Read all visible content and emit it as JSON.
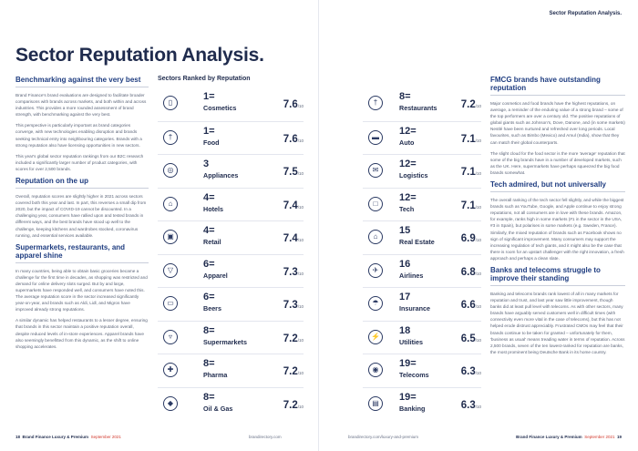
{
  "header": {
    "running_title": "Sector Reputation Analysis."
  },
  "title": "Sector Reputation Analysis.",
  "left_column": [
    {
      "heading": "Benchmarking against the very best",
      "paragraphs": [
        "Brand Finance's brand evaluations are designed to facilitate broader comparisons with brands across markets, and both within and across industries. This provides a more rounded assessment of brand strength, with benchmarking against the very best.",
        "This perspective is particularly important as brand categories converge, with new technologies enabling disruption and brands seeking technical entry into neighbouring categories. Brands with a strong reputation also have licensing opportunities in new sectors.",
        "This year's global sector reputation rankings from our B2C research included a significantly larger number of product categories, with scores for over 2,500 brands."
      ]
    },
    {
      "heading": "Reputation on the up",
      "paragraphs": [
        "Overall, reputation scores are slightly higher in 2021 across sectors covered both this year and last. In part, this reverses a small dip from 2020, but the impact of COVID-19 cannot be discounted. In a challenging year, consumers have rallied upon and tested brands in different ways, and the best brands have stood up well to the challenge, keeping kitchens and wardrobes stocked, coronavirus running, and essential services available."
      ]
    },
    {
      "heading": "Supermarkets, restaurants, and apparel shine",
      "paragraphs": [
        "In many countries, being able to obtain basic groceries became a challenge for the first time in decades, as shopping was restricted and demand for online delivery slots surged. But by and large, supermarkets have responded well, and consumers have noted this. The average reputation score in the sector increased significantly year-on-year, and brands such as Aldi, Lidl, and Migros have improved already strong reputations.",
        "A similar dynamic has helped restaurants to a lesser degree, ensuring that brands in this sector maintain a positive reputation overall, despite reduced levels of in-store experiences. Apparel brands have also seemingly benefitted from this dynamic, as the shift to online shopping accelerates."
      ]
    }
  ],
  "ranking": {
    "title": "Sectors Ranked by Reputation",
    "unit": "/10",
    "left": [
      {
        "rank": "1=",
        "sector": "Cosmetics",
        "score": "7.6",
        "icon": "lipstick-icon",
        "glyph": "▯"
      },
      {
        "rank": "1=",
        "sector": "Food",
        "score": "7.6",
        "icon": "cutlery-icon",
        "glyph": "†"
      },
      {
        "rank": "3",
        "sector": "Appliances",
        "score": "7.5",
        "icon": "washing-machine-icon",
        "glyph": "◎"
      },
      {
        "rank": "4=",
        "sector": "Hotels",
        "score": "7.4",
        "icon": "hotel-bed-icon",
        "glyph": "⌂"
      },
      {
        "rank": "4=",
        "sector": "Retail",
        "score": "7.4",
        "icon": "shopping-bag-icon",
        "glyph": "▣"
      },
      {
        "rank": "6=",
        "sector": "Apparel",
        "score": "7.3",
        "icon": "shirt-icon",
        "glyph": "▽"
      },
      {
        "rank": "6=",
        "sector": "Beers",
        "score": "7.3",
        "icon": "beer-icon",
        "glyph": "▭"
      },
      {
        "rank": "8=",
        "sector": "Supermarkets",
        "score": "7.2",
        "icon": "cart-icon",
        "glyph": "▿"
      },
      {
        "rank": "8=",
        "sector": "Pharma",
        "score": "7.2",
        "icon": "pill-icon",
        "glyph": "✚"
      },
      {
        "rank": "8=",
        "sector": "Oil & Gas",
        "score": "7.2",
        "icon": "oil-drop-icon",
        "glyph": "◆"
      }
    ],
    "right": [
      {
        "rank": "8=",
        "sector": "Restaurants",
        "score": "7.2",
        "icon": "restaurant-icon",
        "glyph": "†"
      },
      {
        "rank": "12=",
        "sector": "Auto",
        "score": "7.1",
        "icon": "car-icon",
        "glyph": "▬"
      },
      {
        "rank": "12=",
        "sector": "Logistics",
        "score": "7.1",
        "icon": "envelope-icon",
        "glyph": "✉"
      },
      {
        "rank": "12=",
        "sector": "Tech",
        "score": "7.1",
        "icon": "laptop-icon",
        "glyph": "□"
      },
      {
        "rank": "15",
        "sector": "Real Estate",
        "score": "6.9",
        "icon": "house-icon",
        "glyph": "⌂"
      },
      {
        "rank": "16",
        "sector": "Airlines",
        "score": "6.8",
        "icon": "plane-icon",
        "glyph": "✈"
      },
      {
        "rank": "17",
        "sector": "Insurance",
        "score": "6.6",
        "icon": "umbrella-icon",
        "glyph": "☂"
      },
      {
        "rank": "18",
        "sector": "Utilities",
        "score": "6.5",
        "icon": "plug-icon",
        "glyph": "⚡"
      },
      {
        "rank": "19=",
        "sector": "Telecoms",
        "score": "6.3",
        "icon": "satellite-icon",
        "glyph": "◉"
      },
      {
        "rank": "19=",
        "sector": "Banking",
        "score": "6.3",
        "icon": "bank-icon",
        "glyph": "▤"
      }
    ]
  },
  "right_column": [
    {
      "heading": "FMCG brands have outstanding reputation",
      "paragraphs": [
        "Major cosmetics and food brands have the highest reputations, on average, a reminder of the enduring value of a strong brand – some of the top performers are over a century old. The positive reputations of global giants such as Johnson's, Dove, Danone, and (in some markets) Nestlé have been nurtured and refreshed over long periods. Local favourites, such as Bimbo (Mexico) and Amul (India), show that they can match their global counterparts.",
        "The slight cloud for the food sector is the more 'average' reputation that some of the big brands have in a number of developed markets, such as the UK. Here, supermarkets have perhaps squeezed the big food brands somewhat."
      ]
    },
    {
      "heading": "Tech admired, but not universally",
      "paragraphs": [
        "The overall ranking of the tech sector fell slightly, and while the biggest brands such as YouTube, Google, and Apple continue to enjoy strong reputations, not all consumers are in love with these brands. Amazon, for example, ranks high in some markets (#1 in the sector in the USA, #3 in Spain), but polarises in some markets (e.g. Sweden, France). Similarly, the mixed reputation of brands such as Facebook shows no sign of significant improvement. Many consumers may support the increasing regulation of tech giants, and it might also be the case that there is room for an upstart challenger with the right innovation, a fresh approach and perhaps a clean slate."
      ]
    },
    {
      "heading": "Banks and telecoms struggle to improve their standing",
      "paragraphs": [
        "Banking and telecoms brands rank lowest of all in many markets for reputation and trust, and last year saw little improvement, though banks did at least pull level with telecoms. As with other sectors, many brands have arguably served customers well in difficult times (with connectivity even more vital in the case of telecoms), but this has not helped erode distrust appreciably. Frustrated CMOs may feel that their brands continue to be taken for granted – unfortunately for them, 'business as usual' means treading water in terms of reputation. Across 2,500 brands, seven of the ten lowest-ranked for reputation are banks, the most prominent being Deutsche Bank in its home country."
      ]
    }
  ],
  "footer": {
    "left_page_num": "18",
    "left_pub": "Brand Finance Luxury & Premium",
    "left_date": "September 2021",
    "left_site": "brandirectory.com",
    "right_site": "brandirectory.com/luxury-and-premium",
    "right_pub": "Brand Finance Luxury & Premium",
    "right_date": "September 2021",
    "right_page_num": "19"
  }
}
